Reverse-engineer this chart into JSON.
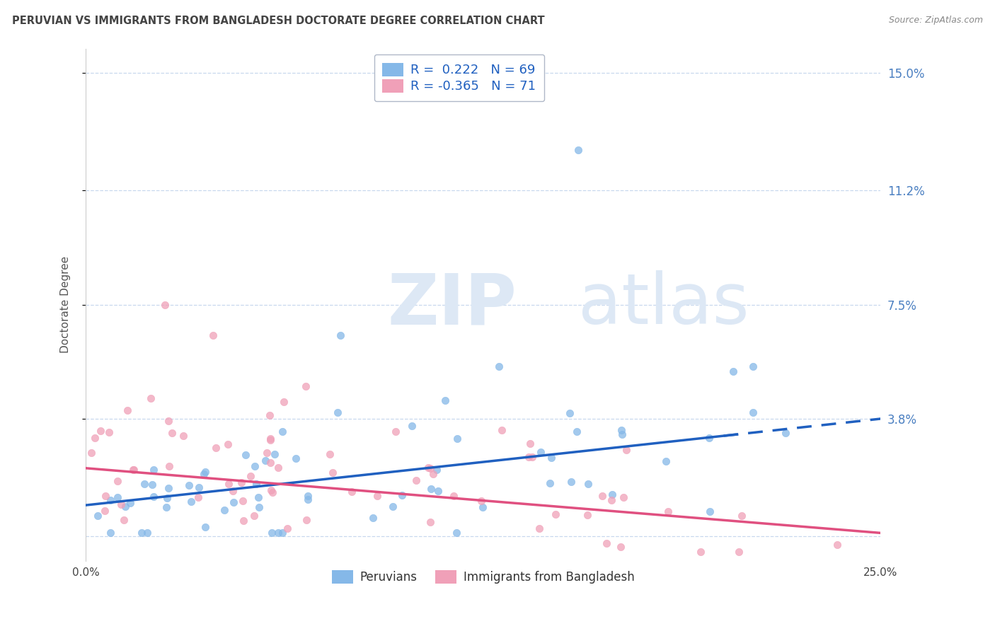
{
  "title": "PERUVIAN VS IMMIGRANTS FROM BANGLADESH DOCTORATE DEGREE CORRELATION CHART",
  "source": "Source: ZipAtlas.com",
  "ylabel": "Doctorate Degree",
  "yticks": [
    0.0,
    0.038,
    0.075,
    0.112,
    0.15
  ],
  "ytick_labels": [
    "",
    "3.8%",
    "7.5%",
    "11.2%",
    "15.0%"
  ],
  "xlim": [
    0.0,
    0.25
  ],
  "ylim": [
    -0.008,
    0.158
  ],
  "legend1_R": "0.222",
  "legend1_N": "69",
  "legend2_R": "-0.365",
  "legend2_N": "71",
  "legend_label1": "Peruvians",
  "legend_label2": "Immigrants from Bangladesh",
  "blue_color": "#85b8e8",
  "pink_color": "#f0a0b8",
  "trend_blue": "#2060c0",
  "trend_pink": "#e05080",
  "grid_color": "#c8d8ee",
  "watermark_color": "#dde8f5",
  "title_color": "#444444",
  "source_color": "#888888",
  "ytick_color": "#4a7fc1",
  "legend_text_color": "#2060c0"
}
